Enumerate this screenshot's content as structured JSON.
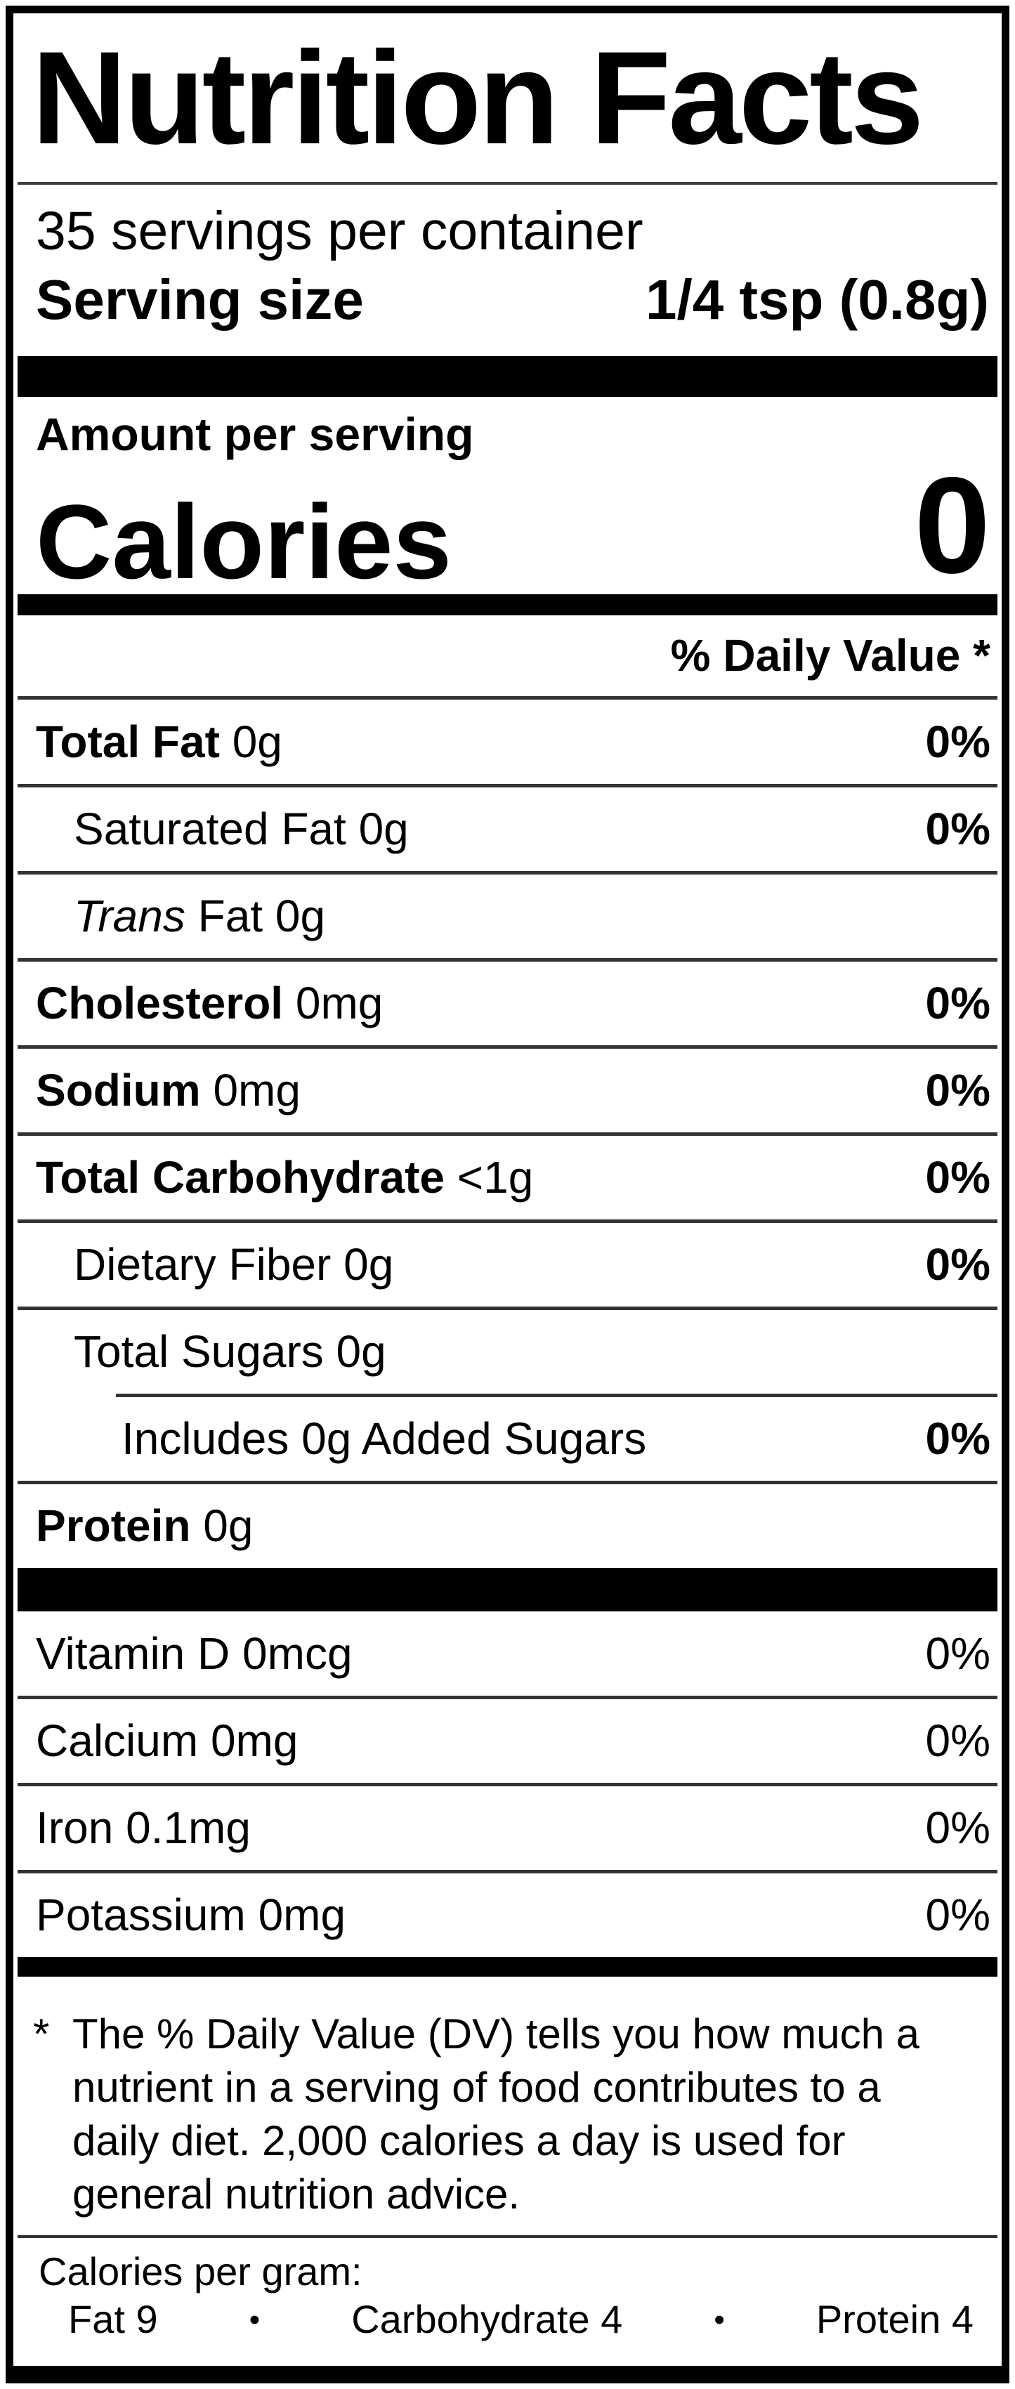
{
  "header": {
    "title": "Nutrition Facts",
    "servings_per_container": "35 servings per container",
    "serving_size_label": "Serving size",
    "serving_size_value": "1/4 tsp (0.8g)"
  },
  "calories_section": {
    "amount_per_serving": "Amount per serving",
    "calories_label": "Calories",
    "calories_value": "0"
  },
  "daily_value_header": "% Daily Value *",
  "nutrient_rows": [
    {
      "strong": "Total Fat",
      "italic": "",
      "rest": " 0g",
      "dv": "0%"
    },
    {
      "strong": "",
      "italic": "",
      "rest": "Saturated Fat 0g",
      "dv": "0%"
    },
    {
      "strong": "",
      "italic": "Trans",
      "rest": " Fat 0g",
      "dv": ""
    },
    {
      "strong": "Cholesterol",
      "italic": "",
      "rest": " 0mg",
      "dv": "0%"
    },
    {
      "strong": "Sodium",
      "italic": "",
      "rest": " 0mg",
      "dv": "0%"
    },
    {
      "strong": "Total Carbohydrate",
      "italic": "",
      "rest": " <1g",
      "dv": "0%"
    },
    {
      "strong": "",
      "italic": "",
      "rest": "Dietary Fiber 0g",
      "dv": "0%"
    },
    {
      "strong": "",
      "italic": "",
      "rest": "Total Sugars 0g",
      "dv": ""
    },
    {
      "strong": "",
      "italic": "",
      "rest": "Includes 0g Added Sugars",
      "dv": "0%"
    },
    {
      "strong": "Protein",
      "italic": "",
      "rest": " 0g",
      "dv": ""
    }
  ],
  "vitamin_rows": [
    {
      "text": "Vitamin D 0mcg",
      "dv": "0%"
    },
    {
      "text": "Calcium 0mg",
      "dv": "0%"
    },
    {
      "text": "Iron 0.1mg",
      "dv": "0%"
    },
    {
      "text": "Potassium 0mg",
      "dv": "0%"
    }
  ],
  "footnote": {
    "marker": "*",
    "lines": [
      "The % Daily Value (DV) tells you how much a",
      "nutrient in a serving of food contributes to a",
      "daily diet. 2,000 calories a day is used for",
      "general nutrition advice."
    ]
  },
  "footer": {
    "calories_per_gram_label": "Calories per gram:",
    "bullet": "•",
    "items": [
      "Fat 9",
      "Carbohydrate 4",
      "Protein 4"
    ]
  }
}
